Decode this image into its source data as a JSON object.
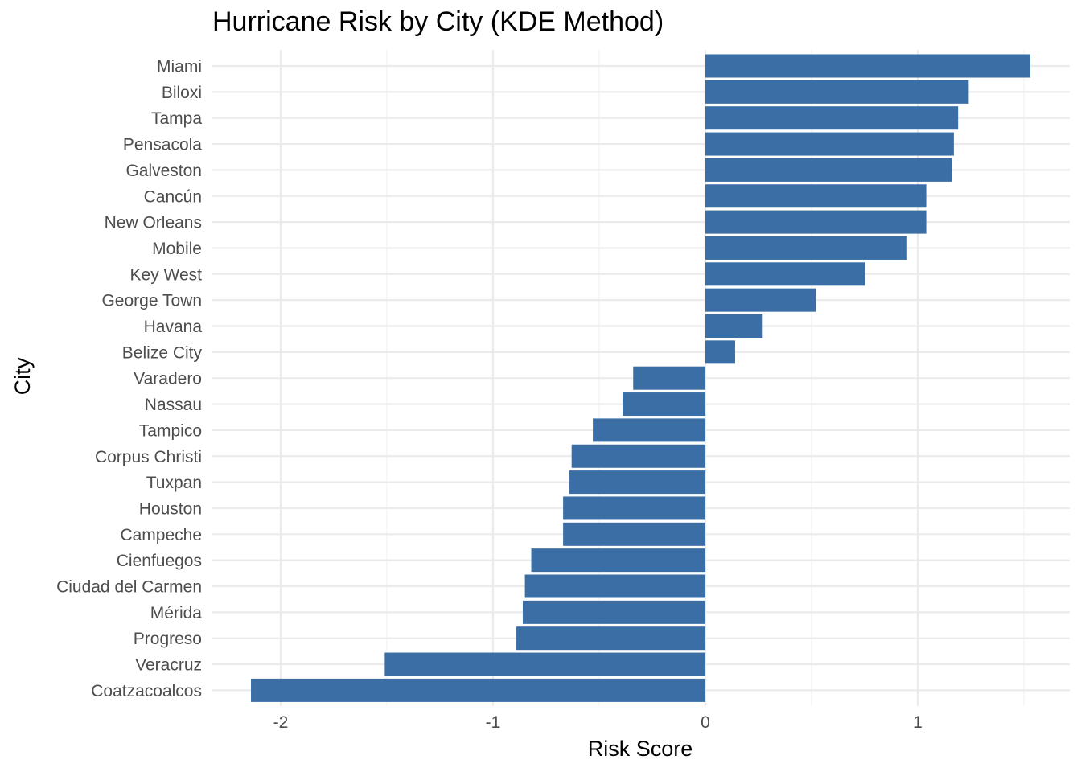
{
  "chart_data": {
    "type": "bar",
    "orientation": "horizontal",
    "title": "Hurricane Risk by City (KDE Method)",
    "xlabel": "Risk Score",
    "ylabel": "City",
    "xlim": [
      -2.4,
      1.7
    ],
    "xticks": [
      -2,
      -1,
      0,
      1
    ],
    "xtick_labels": [
      "-2",
      "-1",
      "0",
      "1"
    ],
    "grid": true,
    "bar_color": "#3A6EA5",
    "categories": [
      "Miami",
      "Biloxi",
      "Tampa",
      "Pensacola",
      "Galveston",
      "Cancún",
      "New Orleans",
      "Mobile",
      "Key West",
      "George Town",
      "Havana",
      "Belize City",
      "Varadero",
      "Nassau",
      "Tampico",
      "Corpus Christi",
      "Tuxpan",
      "Houston",
      "Campeche",
      "Cienfuegos",
      "Ciudad del Carmen",
      "Mérida",
      "Progreso",
      "Veracruz",
      "Coatzacoalcos"
    ],
    "values": [
      1.53,
      1.24,
      1.19,
      1.17,
      1.16,
      1.04,
      1.04,
      0.95,
      0.75,
      0.52,
      0.27,
      0.14,
      -0.34,
      -0.39,
      -0.53,
      -0.63,
      -0.64,
      -0.67,
      -0.67,
      -0.82,
      -0.85,
      -0.86,
      -0.89,
      -1.51,
      -2.14
    ]
  }
}
